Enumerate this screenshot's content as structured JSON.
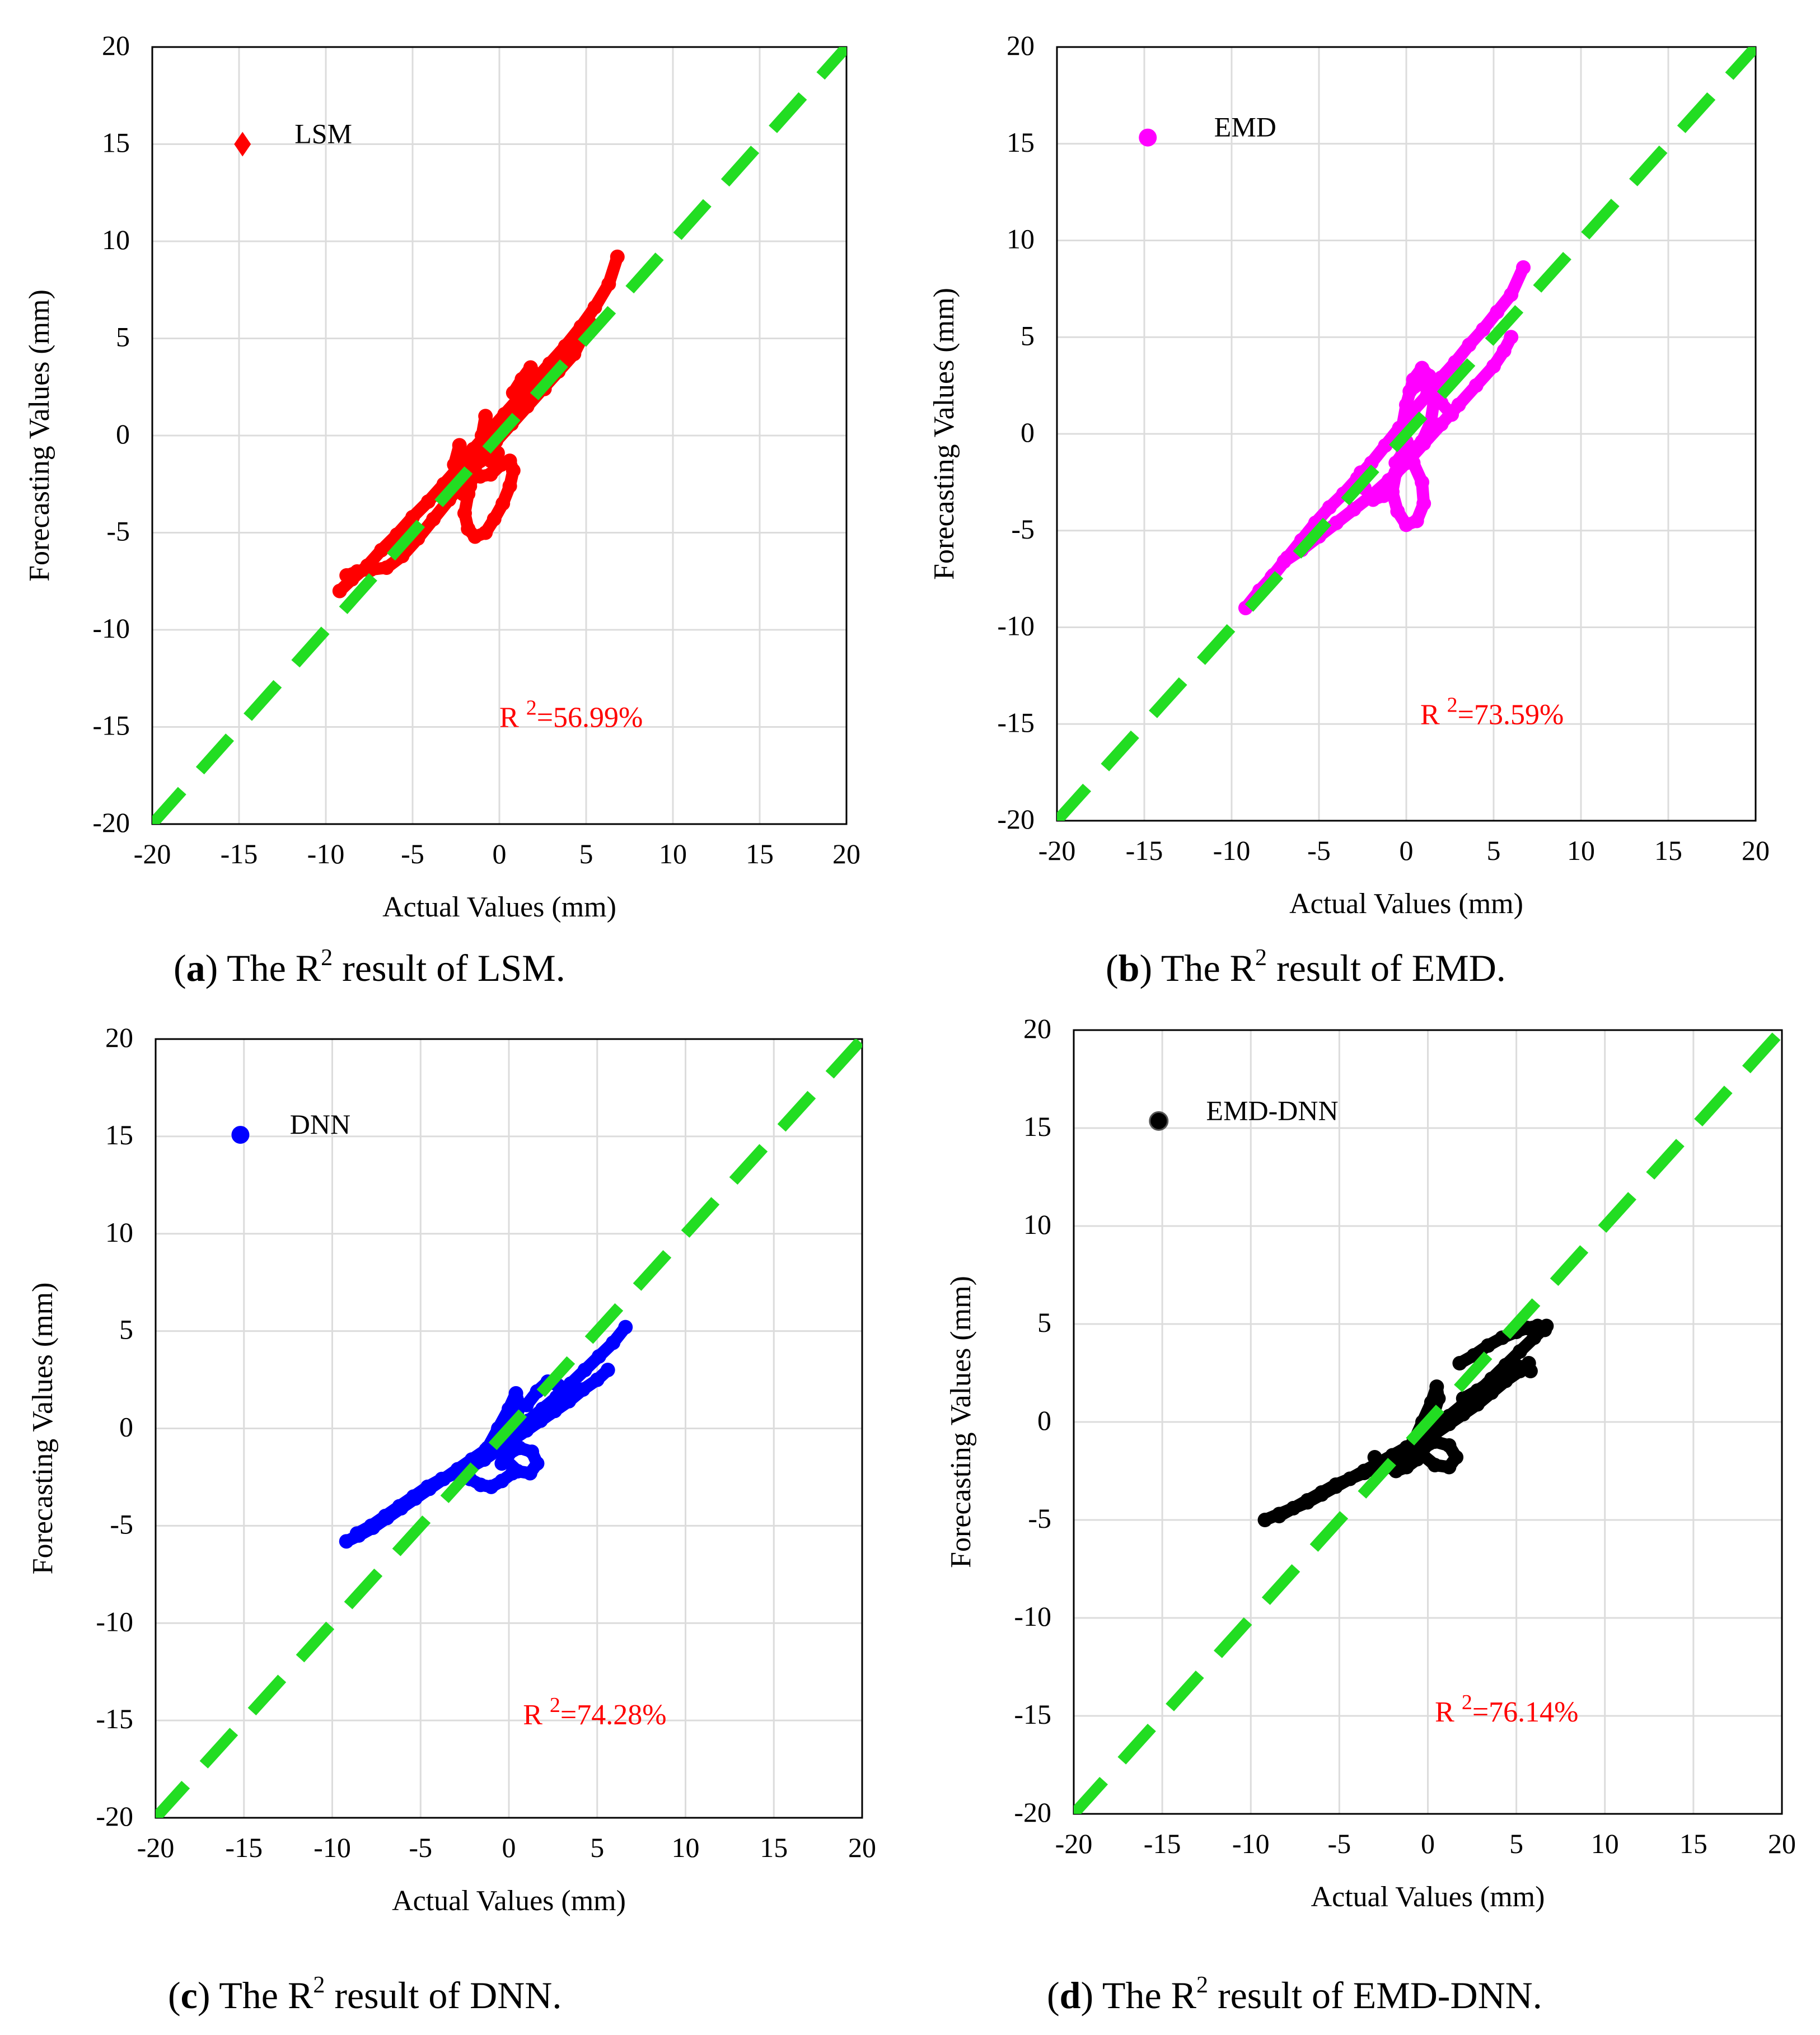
{
  "chart_data": [
    {
      "type": "scatter",
      "panel": "a",
      "caption": {
        "tag": "a",
        "before": "The R",
        "sup": "2",
        "after": " result of LSM."
      },
      "xlabel": "Actual Values (mm)",
      "ylabel": "Forecasting Values (mm)",
      "xlim": [
        -20,
        20
      ],
      "ylim": [
        -20,
        20
      ],
      "xticks": [
        -20,
        -15,
        -10,
        -5,
        0,
        5,
        10,
        15,
        20
      ],
      "yticks": [
        -20,
        -15,
        -10,
        -5,
        0,
        5,
        10,
        15,
        20
      ],
      "grid": true,
      "legend": {
        "label": "LSM",
        "marker": "diamond",
        "placement": "top-left"
      },
      "r2_text": {
        "base": "R ",
        "sup": "2",
        "value": "=56.99%"
      },
      "reference_line": {
        "from": [
          -20,
          -20
        ],
        "to": [
          20,
          20
        ],
        "style": "dashed",
        "color": "#22dd22"
      },
      "color": "#ff0000",
      "series": [
        {
          "x": [
            -9.2,
            -8.5,
            -7.6,
            -6.8,
            -5.9,
            -5.0,
            -4.1,
            -3.2,
            -2.3,
            -1.5,
            -0.6,
            0.3,
            1.2,
            2.0,
            2.9,
            3.8,
            4.7,
            5.5,
            6.3,
            6.8
          ],
          "y": [
            -8.0,
            -7.4,
            -6.7,
            -5.9,
            -5.1,
            -4.2,
            -3.4,
            -2.5,
            -1.6,
            -0.7,
            0.2,
            1.1,
            2.0,
            2.8,
            3.7,
            4.6,
            5.6,
            6.6,
            7.8,
            9.2
          ]
        },
        {
          "x": [
            -8.8,
            -8.2,
            -7.4,
            -6.5,
            -5.6,
            -4.7,
            -3.8,
            -2.9,
            -2.0,
            -1.1,
            -0.2,
            0.7,
            1.6,
            2.5,
            3.4,
            4.3,
            5.2
          ],
          "y": [
            -7.2,
            -7.0,
            -6.9,
            -6.8,
            -6.2,
            -5.3,
            -4.3,
            -3.3,
            -2.3,
            -1.3,
            -0.3,
            0.6,
            1.5,
            2.4,
            3.3,
            4.2,
            5.8
          ]
        },
        {
          "x": [
            -1.5,
            -1.8,
            -2.0,
            -1.8,
            -1.4,
            -0.8,
            -0.3,
            0.2,
            0.6,
            0.8,
            0.6,
            0.1,
            -0.5,
            -1.1,
            -1.6,
            -2.0
          ],
          "y": [
            -2.0,
            -3.0,
            -4.0,
            -4.8,
            -5.2,
            -5.0,
            -4.3,
            -3.5,
            -2.6,
            -1.8,
            -1.3,
            -1.5,
            -2.0,
            -2.1,
            -1.7,
            -1.0
          ]
        },
        {
          "x": [
            -2.3,
            -2.6,
            -2.5,
            -2.1,
            -1.7
          ],
          "y": [
            -0.5,
            -1.5,
            -2.5,
            -3.0,
            -2.6
          ]
        },
        {
          "x": [
            -0.8,
            -1.0,
            -0.9,
            -0.5,
            -0.1
          ],
          "y": [
            1.0,
            0.0,
            -0.9,
            -1.3,
            -0.9
          ]
        },
        {
          "x": [
            0.8,
            1.3,
            1.8,
            2.2,
            2.6
          ],
          "y": [
            2.2,
            2.9,
            3.5,
            3.0,
            2.4
          ]
        },
        {
          "x": [
            2.8,
            3.4,
            4.0,
            4.6,
            5.2
          ],
          "y": [
            3.0,
            3.8,
            4.6,
            5.2,
            5.6
          ]
        }
      ]
    },
    {
      "type": "scatter",
      "panel": "b",
      "caption": {
        "tag": "b",
        "before": "The R",
        "sup": "2",
        "after": " result of EMD."
      },
      "xlabel": "Actual Values (mm)",
      "ylabel": "Forecasting Values (mm)",
      "xlim": [
        -20,
        20
      ],
      "ylim": [
        -20,
        20
      ],
      "xticks": [
        -20,
        -15,
        -10,
        -5,
        0,
        5,
        10,
        15,
        20
      ],
      "yticks": [
        -20,
        -15,
        -10,
        -5,
        0,
        5,
        10,
        15,
        20
      ],
      "grid": true,
      "legend": {
        "label": "EMD",
        "marker": "circle",
        "placement": "top-left"
      },
      "r2_text": {
        "base": "R ",
        "sup": "2",
        "value": "=73.59%"
      },
      "reference_line": {
        "from": [
          -20,
          -20
        ],
        "to": [
          20,
          20
        ],
        "style": "dashed",
        "color": "#22dd22"
      },
      "color": "#ff00ff",
      "series": [
        {
          "x": [
            -9.2,
            -8.4,
            -7.6,
            -6.8,
            -6.0,
            -5.2,
            -4.4,
            -3.6,
            -2.8,
            -2.0,
            -1.2,
            -0.4,
            0.4,
            1.2,
            2.0,
            2.8,
            3.6,
            4.4,
            5.2,
            6.0,
            6.7
          ],
          "y": [
            -9.0,
            -8.1,
            -7.3,
            -6.4,
            -5.5,
            -4.6,
            -3.8,
            -3.1,
            -2.3,
            -1.5,
            -0.6,
            0.3,
            1.2,
            2.0,
            2.9,
            3.7,
            4.6,
            5.4,
            6.3,
            7.2,
            8.6
          ]
        },
        {
          "x": [
            -7.7,
            -7.0,
            -6.0,
            -5.0,
            -4.0,
            -3.0,
            -2.0,
            -1.0,
            0.0,
            1.0,
            2.0,
            3.0,
            4.0,
            5.0,
            5.6,
            6.0
          ],
          "y": [
            -7.4,
            -6.6,
            -6.0,
            -5.3,
            -4.6,
            -3.9,
            -3.2,
            -2.4,
            -1.5,
            -0.5,
            0.5,
            1.5,
            2.5,
            3.5,
            4.3,
            5.0
          ]
        },
        {
          "x": [
            -0.6,
            -0.8,
            -0.5,
            0.0,
            0.6,
            1.0,
            0.9,
            0.4,
            -0.2,
            -0.6
          ],
          "y": [
            -2.0,
            -3.0,
            -4.0,
            -4.7,
            -4.5,
            -3.6,
            -2.5,
            -1.5,
            -1.0,
            -1.5
          ]
        },
        {
          "x": [
            -0.3,
            0.0,
            0.4,
            0.9,
            1.3,
            1.6,
            1.4,
            0.9,
            0.4,
            0.0
          ],
          "y": [
            0.0,
            1.5,
            2.8,
            3.4,
            3.0,
            1.8,
            0.6,
            -0.4,
            -0.8,
            -0.4
          ]
        },
        {
          "x": [
            -2.6,
            -2.4,
            -1.9,
            -1.3,
            -0.8
          ],
          "y": [
            -2.0,
            -2.8,
            -3.4,
            -3.2,
            -2.6
          ]
        },
        {
          "x": [
            0.2,
            0.8,
            1.4,
            2.0,
            2.6
          ],
          "y": [
            2.2,
            2.6,
            2.2,
            1.6,
            1.0
          ]
        }
      ]
    },
    {
      "type": "scatter",
      "panel": "c",
      "caption": {
        "tag": "c",
        "before": "The R",
        "sup": "2",
        "after": " result of DNN."
      },
      "xlabel": "Actual Values (mm)",
      "ylabel": "Forecasting Values (mm)",
      "xlim": [
        -20,
        20
      ],
      "ylim": [
        -20,
        20
      ],
      "xticks": [
        -20,
        -15,
        -10,
        -5,
        0,
        5,
        10,
        15,
        20
      ],
      "yticks": [
        -20,
        -15,
        -10,
        -5,
        0,
        5,
        10,
        15,
        20
      ],
      "grid": true,
      "legend": {
        "label": "DNN",
        "marker": "circle",
        "placement": "top-left"
      },
      "r2_text": {
        "base": "R ",
        "sup": "2",
        "value": "=74.28%"
      },
      "reference_line": {
        "from": [
          -20,
          -20
        ],
        "to": [
          20,
          20
        ],
        "style": "dashed",
        "color": "#22dd22"
      },
      "color": "#0000ff",
      "series": [
        {
          "x": [
            -9.2,
            -8.5,
            -7.7,
            -6.9,
            -6.1,
            -5.3,
            -4.5,
            -3.7,
            -2.9,
            -2.1,
            -1.3,
            -0.5,
            0.3,
            1.1,
            1.9,
            2.7,
            3.5,
            4.3,
            5.1,
            5.9,
            6.6
          ],
          "y": [
            -5.8,
            -5.5,
            -5.1,
            -4.6,
            -4.1,
            -3.6,
            -3.1,
            -2.6,
            -2.1,
            -1.6,
            -1.1,
            -0.6,
            -0.1,
            0.4,
            1.0,
            1.6,
            2.3,
            3.0,
            3.7,
            4.4,
            5.2
          ]
        },
        {
          "x": [
            -8.6,
            -7.8,
            -7.0,
            -6.2,
            -5.4,
            -4.6,
            -3.8,
            -3.0,
            -2.2,
            -1.4,
            -0.6,
            0.2,
            1.0,
            1.8,
            2.6,
            3.4,
            4.2,
            5.0,
            5.6
          ],
          "y": [
            -5.4,
            -5.0,
            -4.5,
            -4.0,
            -3.5,
            -3.0,
            -2.6,
            -2.3,
            -2.0,
            -1.6,
            -1.1,
            -0.6,
            -0.1,
            0.4,
            0.9,
            1.4,
            2.0,
            2.5,
            3.0
          ]
        },
        {
          "x": [
            -1.2,
            -0.6,
            0.0,
            0.4,
            0.6,
            0.4,
            0.0,
            -0.5,
            -1.0
          ],
          "y": [
            -1.0,
            0.0,
            1.0,
            1.8,
            1.2,
            0.3,
            -0.5,
            -1.0,
            -1.2
          ]
        },
        {
          "x": [
            -0.2,
            0.5,
            1.2,
            1.6,
            1.3,
            0.6,
            0.0,
            -0.4
          ],
          "y": [
            -1.6,
            -2.2,
            -2.3,
            -1.8,
            -1.2,
            -1.0,
            -1.3,
            -1.8
          ]
        },
        {
          "x": [
            -2.2,
            -1.6,
            -1.0,
            -0.4,
            0.2
          ],
          "y": [
            -2.6,
            -2.9,
            -3.0,
            -2.7,
            -2.3
          ]
        },
        {
          "x": [
            1.0,
            1.6,
            2.2,
            2.8,
            3.4
          ],
          "y": [
            1.2,
            1.9,
            2.4,
            2.2,
            1.8
          ]
        }
      ]
    },
    {
      "type": "scatter",
      "panel": "d",
      "caption": {
        "tag": "d",
        "before": "The R",
        "sup": "2",
        "after": " result of EMD-DNN."
      },
      "xlabel": "Actual Values (mm)",
      "ylabel": "Forecasting Values (mm)",
      "xlim": [
        -20,
        20
      ],
      "ylim": [
        -20,
        20
      ],
      "xticks": [
        -20,
        -15,
        -10,
        -5,
        0,
        5,
        10,
        15,
        20
      ],
      "yticks": [
        -20,
        -15,
        -10,
        -5,
        0,
        5,
        10,
        15,
        20
      ],
      "grid": true,
      "legend": {
        "label": "EMD-DNN",
        "marker": "circle",
        "placement": "top-left"
      },
      "r2_text": {
        "base": "R ",
        "sup": "2",
        "value": "=76.14%"
      },
      "reference_line": {
        "from": [
          -20,
          -20
        ],
        "to": [
          20,
          20
        ],
        "style": "dashed",
        "color": "#22dd22"
      },
      "color": "#000000",
      "series": [
        {
          "x": [
            -9.2,
            -8.4,
            -7.6,
            -6.8,
            -6.0,
            -5.2,
            -4.4,
            -3.6,
            -2.8,
            -2.0,
            -1.2,
            -0.4,
            0.4,
            1.2,
            2.0,
            2.8,
            3.6,
            4.4,
            5.2,
            6.0,
            6.7
          ],
          "y": [
            -5.0,
            -4.7,
            -4.4,
            -4.1,
            -3.7,
            -3.3,
            -2.9,
            -2.5,
            -2.1,
            -1.7,
            -1.3,
            -0.8,
            -0.3,
            0.3,
            0.9,
            1.5,
            2.2,
            2.9,
            3.6,
            4.3,
            4.9
          ]
        },
        {
          "x": [
            -8.4,
            -7.6,
            -6.8,
            -6.0,
            -5.2,
            -4.4,
            -3.6,
            -2.8,
            -2.0,
            -1.2,
            -0.4,
            0.4,
            1.2,
            2.0,
            2.8,
            3.6,
            4.4,
            5.2,
            5.7
          ],
          "y": [
            -4.8,
            -4.4,
            -4.0,
            -3.6,
            -3.2,
            -2.9,
            -2.6,
            -2.3,
            -2.0,
            -1.6,
            -1.1,
            -0.6,
            -0.1,
            0.4,
            0.9,
            1.5,
            2.1,
            2.6,
            3.0
          ]
        },
        {
          "x": [
            -0.8,
            -0.3,
            0.2,
            0.5,
            0.6,
            0.3,
            -0.2,
            -0.6
          ],
          "y": [
            -1.0,
            0.0,
            1.0,
            1.8,
            1.2,
            0.3,
            -0.5,
            -1.0
          ]
        },
        {
          "x": [
            -0.4,
            0.4,
            1.2,
            1.6,
            1.2,
            0.4,
            -0.2
          ],
          "y": [
            -1.6,
            -2.2,
            -2.3,
            -1.8,
            -1.2,
            -1.0,
            -1.3
          ]
        },
        {
          "x": [
            -3.0,
            -2.4,
            -1.8,
            -1.2,
            -0.6
          ],
          "y": [
            -1.8,
            -2.2,
            -2.5,
            -2.3,
            -1.9
          ]
        },
        {
          "x": [
            1.8,
            2.6,
            3.4,
            4.2,
            5.0,
            5.6,
            6.2,
            6.6
          ],
          "y": [
            3.0,
            3.4,
            3.9,
            4.3,
            4.6,
            4.8,
            4.9,
            4.7
          ]
        },
        {
          "x": [
            2.0,
            2.8,
            3.6,
            4.4,
            5.2,
            5.8
          ],
          "y": [
            1.2,
            1.6,
            2.1,
            2.5,
            2.8,
            2.6
          ]
        }
      ]
    }
  ]
}
